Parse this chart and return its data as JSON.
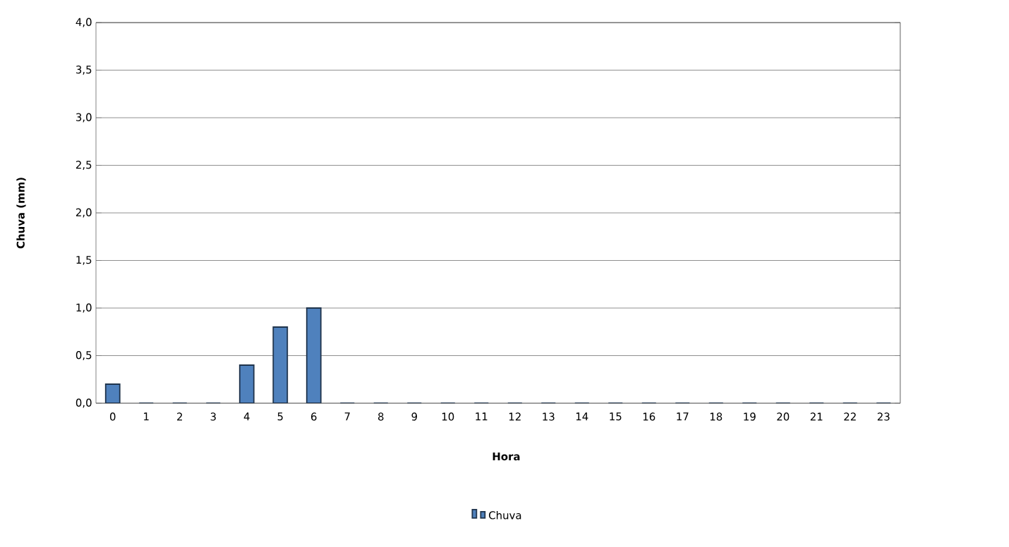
{
  "chart_data": {
    "type": "bar",
    "xlabel": "Hora",
    "ylabel": "Chuva (mm)",
    "categories": [
      "0",
      "1",
      "2",
      "3",
      "4",
      "5",
      "6",
      "7",
      "8",
      "9",
      "10",
      "11",
      "12",
      "13",
      "14",
      "15",
      "16",
      "17",
      "18",
      "19",
      "20",
      "21",
      "22",
      "23"
    ],
    "series": [
      {
        "name": "Chuva",
        "color": "#4f81bd",
        "values": [
          0.2,
          0,
          0,
          0,
          0.4,
          0.8,
          1.0,
          0,
          0,
          0,
          0,
          0,
          0,
          0,
          0,
          0,
          0,
          0,
          0,
          0,
          0,
          0,
          0,
          0
        ]
      }
    ],
    "ylim": [
      0,
      4
    ],
    "yticks": [
      {
        "value": 0,
        "label": "0,0"
      },
      {
        "value": 0.5,
        "label": "0,5"
      },
      {
        "value": 1,
        "label": "1,0"
      },
      {
        "value": 1.5,
        "label": "1,5"
      },
      {
        "value": 2,
        "label": "2,0"
      },
      {
        "value": 2.5,
        "label": "2,5"
      },
      {
        "value": 3,
        "label": "3,0"
      },
      {
        "value": 3.5,
        "label": "3,5"
      },
      {
        "value": 4,
        "label": "4,0"
      }
    ],
    "grid": "y",
    "legend": "bottom"
  }
}
